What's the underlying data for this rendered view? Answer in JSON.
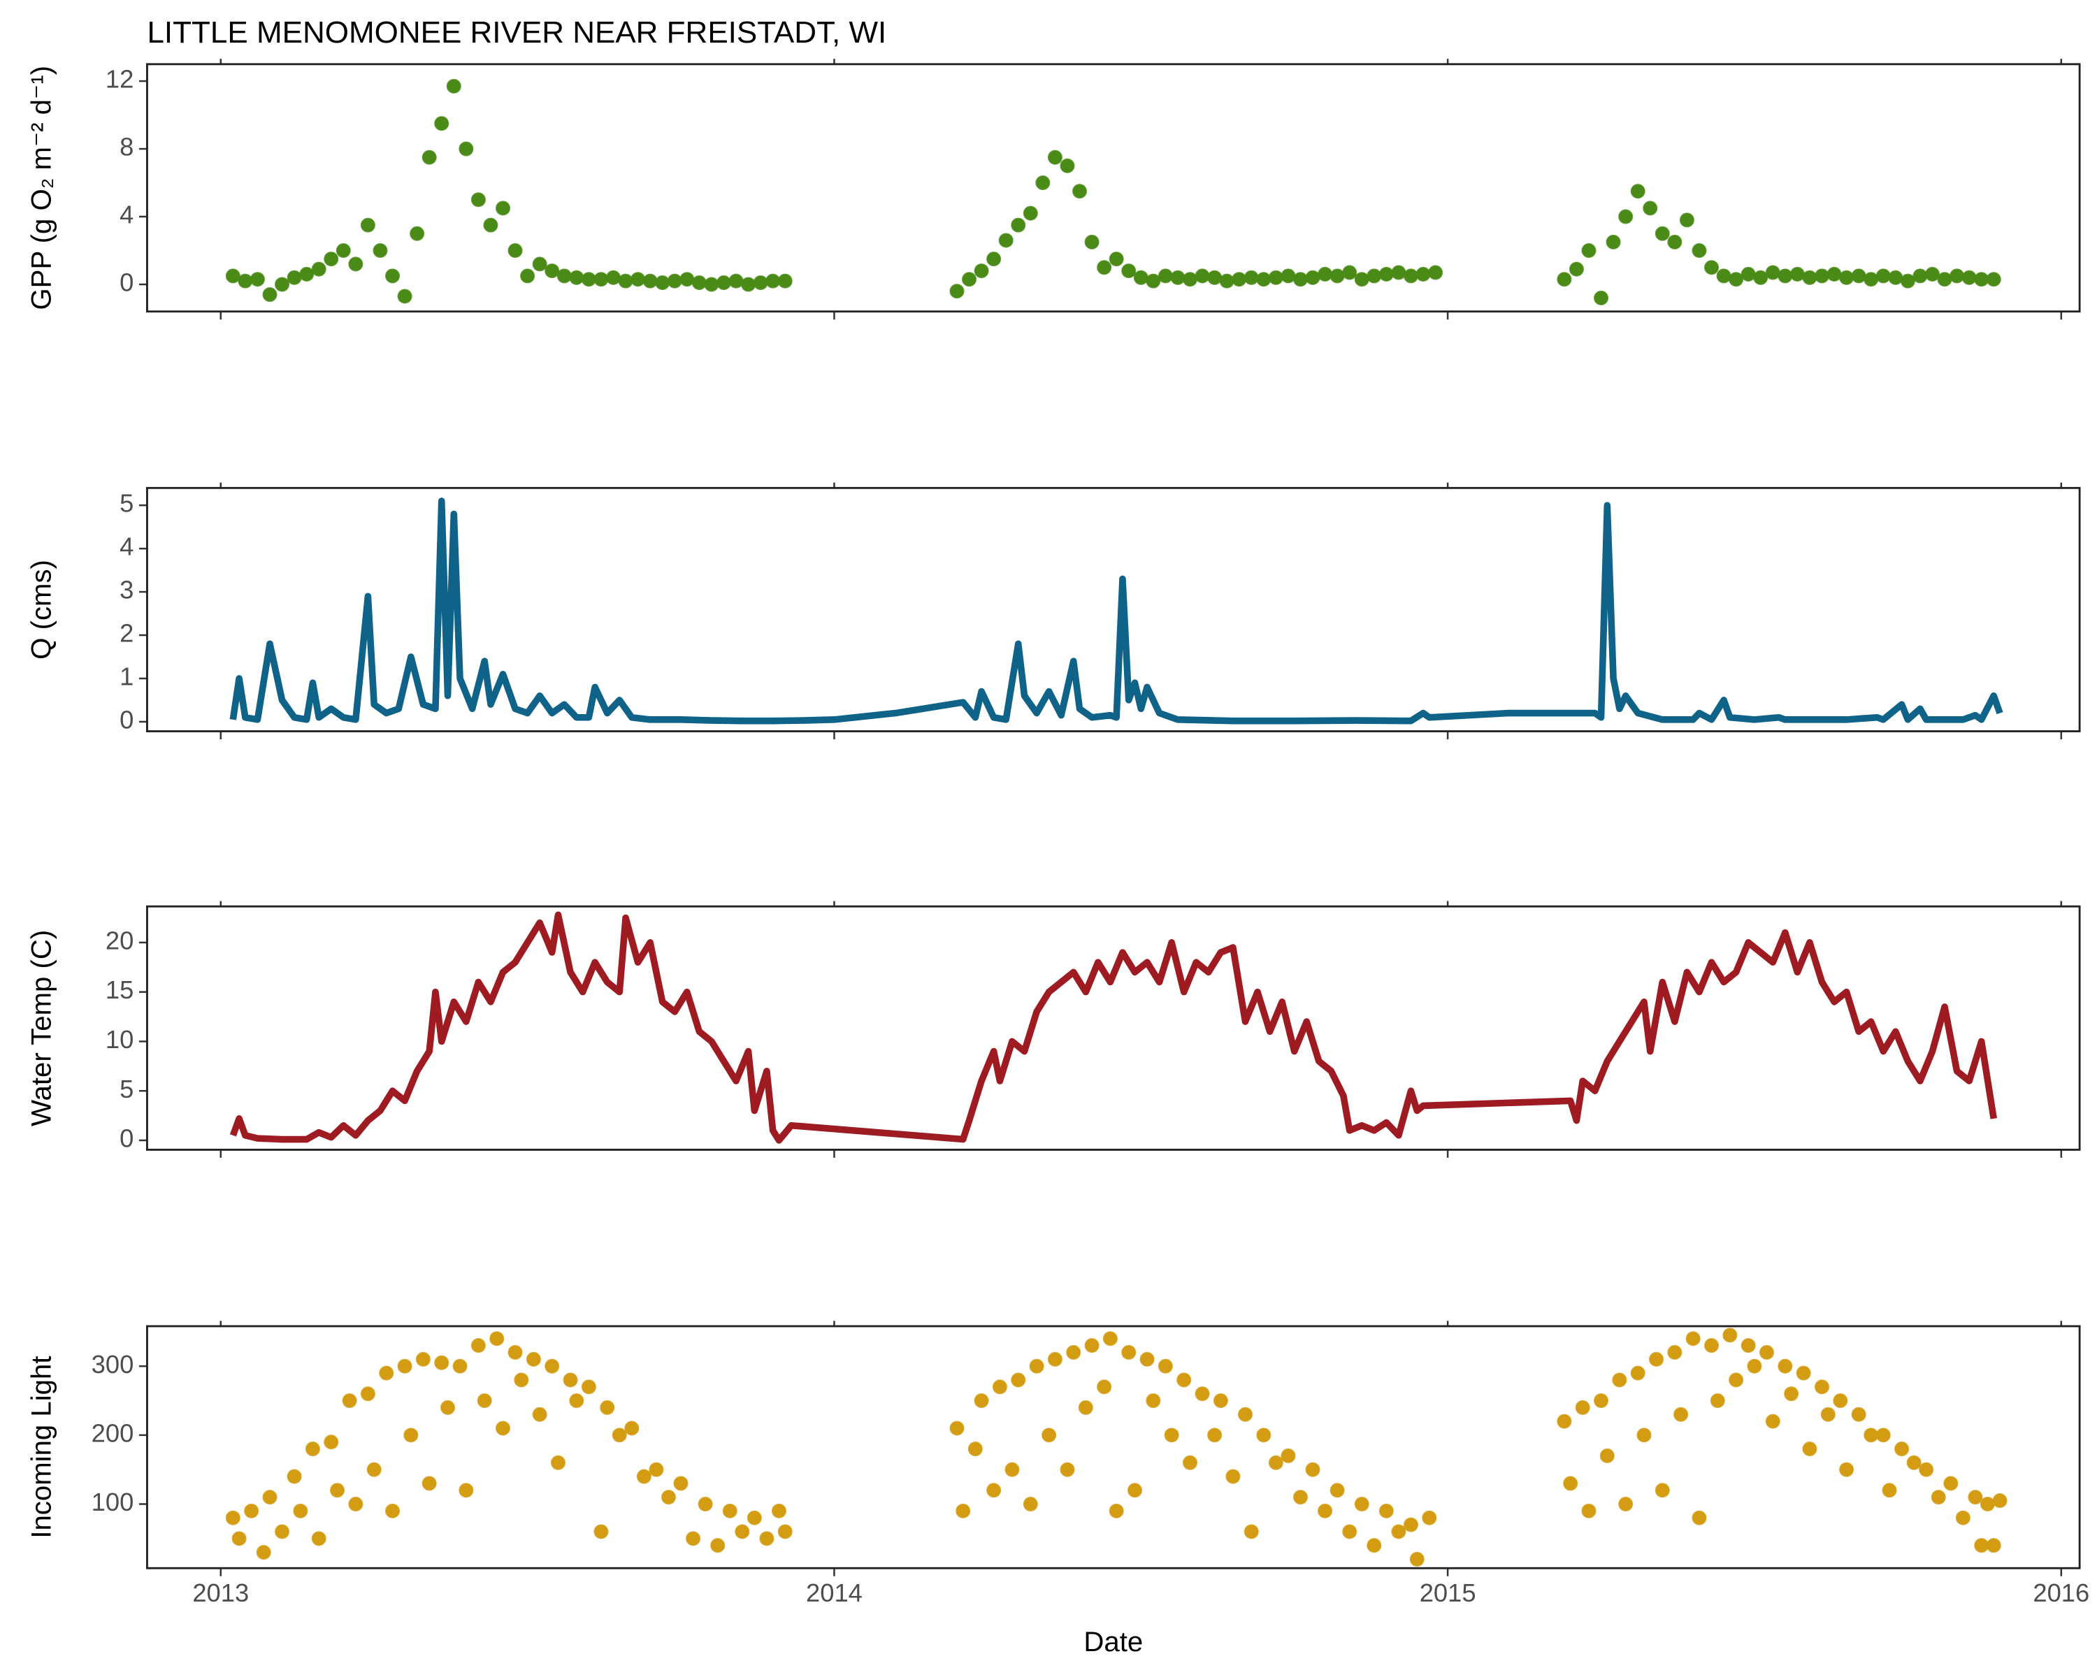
{
  "chart_data": [
    {
      "type": "scatter",
      "title": "LITTLE MENOMONEE RIVER NEAR FREISTADT, WI",
      "ylabel": "GPP (g  O₂ m⁻² d⁻¹)",
      "color": "#4a8a17",
      "x": [
        2013.02,
        2013.04,
        2013.06,
        2013.08,
        2013.1,
        2013.12,
        2013.14,
        2013.16,
        2013.18,
        2013.2,
        2013.22,
        2013.24,
        2013.26,
        2013.28,
        2013.3,
        2013.32,
        2013.34,
        2013.36,
        2013.38,
        2013.4,
        2013.42,
        2013.44,
        2013.46,
        2013.48,
        2013.5,
        2013.52,
        2013.54,
        2013.56,
        2013.58,
        2013.6,
        2013.62,
        2013.64,
        2013.66,
        2013.68,
        2013.7,
        2013.72,
        2013.74,
        2013.76,
        2013.78,
        2013.8,
        2013.82,
        2013.84,
        2013.86,
        2013.88,
        2013.9,
        2013.92,
        2014.2,
        2014.22,
        2014.24,
        2014.26,
        2014.28,
        2014.3,
        2014.32,
        2014.34,
        2014.36,
        2014.38,
        2014.4,
        2014.42,
        2014.44,
        2014.46,
        2014.48,
        2014.5,
        2014.52,
        2014.54,
        2014.56,
        2014.58,
        2014.6,
        2014.62,
        2014.64,
        2014.66,
        2014.68,
        2014.7,
        2014.72,
        2014.74,
        2014.76,
        2014.78,
        2014.8,
        2014.82,
        2014.84,
        2014.86,
        2014.88,
        2014.9,
        2014.92,
        2014.94,
        2014.96,
        2014.98,
        2015.19,
        2015.21,
        2015.23,
        2015.25,
        2015.27,
        2015.29,
        2015.31,
        2015.33,
        2015.35,
        2015.37,
        2015.39,
        2015.41,
        2015.43,
        2015.45,
        2015.47,
        2015.49,
        2015.51,
        2015.53,
        2015.55,
        2015.57,
        2015.59,
        2015.61,
        2015.63,
        2015.65,
        2015.67,
        2015.69,
        2015.71,
        2015.73,
        2015.75,
        2015.77,
        2015.79,
        2015.81,
        2015.83,
        2015.85,
        2015.87,
        2015.89
      ],
      "values": [
        0.5,
        0.2,
        0.3,
        -0.6,
        0,
        0.4,
        0.6,
        0.9,
        1.5,
        2,
        1.2,
        3.5,
        2,
        0.5,
        -0.7,
        3,
        7.5,
        9.5,
        11.7,
        8,
        5,
        3.5,
        4.5,
        2,
        0.5,
        1.2,
        0.8,
        0.5,
        0.4,
        0.3,
        0.3,
        0.4,
        0.2,
        0.3,
        0.2,
        0.1,
        0.2,
        0.3,
        0.1,
        0,
        0.1,
        0.2,
        0,
        0.1,
        0.2,
        0.2,
        -0.4,
        0.3,
        0.8,
        1.5,
        2.6,
        3.5,
        4.2,
        6,
        7.5,
        7,
        5.5,
        2.5,
        1,
        1.5,
        0.8,
        0.4,
        0.2,
        0.5,
        0.4,
        0.3,
        0.5,
        0.4,
        0.2,
        0.3,
        0.4,
        0.3,
        0.4,
        0.5,
        0.3,
        0.4,
        0.6,
        0.5,
        0.7,
        0.3,
        0.5,
        0.6,
        0.7,
        0.5,
        0.6,
        0.7,
        0.3,
        0.9,
        2,
        -0.8,
        2.5,
        4,
        5.5,
        4.5,
        3,
        2.5,
        3.8,
        2,
        1,
        0.5,
        0.3,
        0.6,
        0.4,
        0.7,
        0.5,
        0.6,
        0.4,
        0.5,
        0.6,
        0.4,
        0.5,
        0.3,
        0.5,
        0.4,
        0.2,
        0.5,
        0.6,
        0.3,
        0.5,
        0.4,
        0.3,
        0.3
      ],
      "xlim": [
        2012.88,
        2016.03
      ],
      "xticks": [
        2013,
        2014,
        2015,
        2016
      ],
      "ylim": [
        -1.6,
        13
      ],
      "yticks": [
        0,
        4,
        8,
        12
      ]
    },
    {
      "type": "line",
      "ylabel": "Q (cms)",
      "color": "#0f6389",
      "x": [
        2013.02,
        2013.03,
        2013.04,
        2013.06,
        2013.08,
        2013.1,
        2013.12,
        2013.14,
        2013.15,
        2013.16,
        2013.18,
        2013.2,
        2013.22,
        2013.24,
        2013.25,
        2013.27,
        2013.29,
        2013.31,
        2013.33,
        2013.35,
        2013.36,
        2013.37,
        2013.38,
        2013.39,
        2013.41,
        2013.43,
        2013.44,
        2013.46,
        2013.48,
        2013.5,
        2013.52,
        2013.54,
        2013.56,
        2013.58,
        2013.6,
        2013.61,
        2013.63,
        2013.65,
        2013.67,
        2013.7,
        2013.75,
        2013.8,
        2013.85,
        2013.9,
        2013.95,
        2014,
        2014.1,
        2014.21,
        2014.23,
        2014.24,
        2014.26,
        2014.28,
        2014.3,
        2014.31,
        2014.33,
        2014.35,
        2014.37,
        2014.39,
        2014.4,
        2014.42,
        2014.45,
        2014.46,
        2014.47,
        2014.48,
        2014.49,
        2014.5,
        2014.51,
        2014.53,
        2014.56,
        2014.65,
        2014.75,
        2014.85,
        2014.94,
        2014.96,
        2014.97,
        2015.1,
        2015.24,
        2015.25,
        2015.26,
        2015.27,
        2015.28,
        2015.29,
        2015.31,
        2015.35,
        2015.4,
        2015.41,
        2015.43,
        2015.45,
        2015.46,
        2015.5,
        2015.54,
        2015.55,
        2015.65,
        2015.7,
        2015.71,
        2015.74,
        2015.75,
        2015.77,
        2015.78,
        2015.84,
        2015.86,
        2015.87,
        2015.89,
        2015.9
      ],
      "values": [
        0.05,
        1,
        0.1,
        0.05,
        1.8,
        0.5,
        0.1,
        0.05,
        0.9,
        0.1,
        0.3,
        0.1,
        0.05,
        2.9,
        0.4,
        0.2,
        0.3,
        1.5,
        0.4,
        0.3,
        5.1,
        0.6,
        4.8,
        1,
        0.3,
        1.4,
        0.4,
        1.1,
        0.3,
        0.2,
        0.6,
        0.2,
        0.4,
        0.1,
        0.1,
        0.8,
        0.2,
        0.5,
        0.1,
        0.05,
        0.05,
        0.03,
        0.02,
        0.02,
        0.03,
        0.05,
        0.2,
        0.45,
        0.1,
        0.7,
        0.1,
        0.05,
        1.8,
        0.6,
        0.2,
        0.7,
        0.15,
        1.4,
        0.3,
        0.1,
        0.15,
        0.1,
        3.3,
        0.5,
        0.9,
        0.3,
        0.8,
        0.2,
        0.05,
        0.02,
        0.02,
        0.03,
        0.02,
        0.2,
        0.1,
        0.2,
        0.2,
        0.1,
        5,
        1,
        0.3,
        0.6,
        0.2,
        0.05,
        0.05,
        0.2,
        0.05,
        0.5,
        0.1,
        0.05,
        0.1,
        0.05,
        0.05,
        0.1,
        0.05,
        0.4,
        0.05,
        0.3,
        0.05,
        0.05,
        0.15,
        0.05,
        0.6,
        0.2
      ],
      "xlim": [
        2012.88,
        2016.03
      ],
      "xticks": [
        2013,
        2014,
        2015,
        2016
      ],
      "ylim": [
        -0.22,
        5.4
      ],
      "yticks": [
        0,
        1,
        2,
        3,
        4,
        5
      ]
    },
    {
      "type": "line",
      "ylabel": "Water Temp (C)",
      "color": "#9e1b22",
      "x": [
        2013.02,
        2013.03,
        2013.04,
        2013.06,
        2013.1,
        2013.14,
        2013.16,
        2013.18,
        2013.2,
        2013.22,
        2013.24,
        2013.26,
        2013.28,
        2013.3,
        2013.32,
        2013.34,
        2013.35,
        2013.36,
        2013.38,
        2013.4,
        2013.42,
        2013.44,
        2013.46,
        2013.48,
        2013.5,
        2013.52,
        2013.54,
        2013.55,
        2013.57,
        2013.59,
        2013.61,
        2013.63,
        2013.65,
        2013.66,
        2013.68,
        2013.7,
        2013.72,
        2013.74,
        2013.76,
        2013.78,
        2013.8,
        2013.82,
        2013.84,
        2013.86,
        2013.87,
        2013.89,
        2013.9,
        2013.91,
        2013.93,
        2014.21,
        2014.22,
        2014.24,
        2014.26,
        2014.27,
        2014.29,
        2014.31,
        2014.33,
        2014.35,
        2014.37,
        2014.39,
        2014.41,
        2014.43,
        2014.45,
        2014.47,
        2014.49,
        2014.51,
        2014.53,
        2014.55,
        2014.57,
        2014.59,
        2014.61,
        2014.63,
        2014.65,
        2014.67,
        2014.69,
        2014.71,
        2014.73,
        2014.75,
        2014.77,
        2014.79,
        2014.81,
        2014.83,
        2014.84,
        2014.86,
        2014.88,
        2014.9,
        2014.92,
        2014.94,
        2014.95,
        2014.96,
        2015.2,
        2015.21,
        2015.22,
        2015.24,
        2015.26,
        2015.28,
        2015.3,
        2015.32,
        2015.33,
        2015.35,
        2015.37,
        2015.39,
        2015.41,
        2015.43,
        2015.45,
        2015.47,
        2015.49,
        2015.51,
        2015.53,
        2015.55,
        2015.57,
        2015.59,
        2015.61,
        2015.63,
        2015.65,
        2015.67,
        2015.69,
        2015.71,
        2015.73,
        2015.75,
        2015.77,
        2015.79,
        2015.81,
        2015.83,
        2015.85,
        2015.87,
        2015.89
      ],
      "values": [
        0.5,
        2.2,
        0.5,
        0.2,
        0.1,
        0.1,
        0.8,
        0.3,
        1.5,
        0.5,
        2,
        3,
        5,
        4,
        7,
        9,
        15,
        10,
        14,
        12,
        16,
        14,
        17,
        18,
        20,
        22,
        19,
        22.8,
        17,
        15,
        18,
        16,
        15,
        22.5,
        18,
        20,
        14,
        13,
        15,
        11,
        10,
        8,
        6,
        9,
        3,
        7,
        1,
        0,
        1.5,
        0.1,
        2,
        6,
        9,
        6,
        10,
        9,
        13,
        15,
        16,
        17,
        15,
        18,
        16,
        19,
        17,
        18,
        16,
        20,
        15,
        18,
        17,
        19,
        19.5,
        12,
        15,
        11,
        14,
        9,
        12,
        8,
        7,
        4.5,
        1,
        1.5,
        1,
        1.8,
        0.5,
        5,
        3,
        3.5,
        4,
        2,
        6,
        5,
        8,
        10,
        12,
        14,
        9,
        16,
        12,
        17,
        15,
        18,
        16,
        17,
        20,
        19,
        18,
        21,
        17,
        20,
        16,
        14,
        15,
        11,
        12,
        9,
        11,
        8,
        6,
        9,
        13.5,
        7,
        6,
        10,
        2.2
      ],
      "xlim": [
        2012.88,
        2016.03
      ],
      "xticks": [
        2013,
        2014,
        2015,
        2016
      ],
      "ylim": [
        -0.95,
        23.65
      ],
      "yticks": [
        0,
        5,
        10,
        15,
        20
      ]
    },
    {
      "type": "scatter",
      "ylabel": "Incoming Light",
      "xlabel": "Date",
      "color": "#d39c12",
      "x": [
        2013.02,
        2013.03,
        2013.05,
        2013.07,
        2013.08,
        2013.1,
        2013.12,
        2013.13,
        2013.15,
        2013.16,
        2013.18,
        2013.19,
        2013.21,
        2013.22,
        2013.24,
        2013.25,
        2013.27,
        2013.28,
        2013.3,
        2013.31,
        2013.33,
        2013.34,
        2013.36,
        2013.37,
        2013.39,
        2013.4,
        2013.42,
        2013.43,
        2013.45,
        2013.46,
        2013.48,
        2013.49,
        2013.51,
        2013.52,
        2013.54,
        2013.55,
        2013.57,
        2013.58,
        2013.6,
        2013.62,
        2013.63,
        2013.65,
        2013.67,
        2013.69,
        2013.71,
        2013.73,
        2013.75,
        2013.77,
        2013.79,
        2013.81,
        2013.83,
        2013.85,
        2013.87,
        2013.89,
        2013.91,
        2013.92,
        2014.2,
        2014.21,
        2014.23,
        2014.24,
        2014.26,
        2014.27,
        2014.29,
        2014.3,
        2014.32,
        2014.33,
        2014.35,
        2014.36,
        2014.38,
        2014.39,
        2014.41,
        2014.42,
        2014.44,
        2014.45,
        2014.46,
        2014.48,
        2014.49,
        2014.51,
        2014.52,
        2014.54,
        2014.55,
        2014.57,
        2014.58,
        2014.6,
        2014.62,
        2014.63,
        2014.65,
        2014.67,
        2014.68,
        2014.7,
        2014.72,
        2014.74,
        2014.76,
        2014.78,
        2014.8,
        2014.82,
        2014.84,
        2014.86,
        2014.88,
        2014.9,
        2014.92,
        2014.94,
        2014.95,
        2014.97,
        2015.19,
        2015.2,
        2015.22,
        2015.23,
        2015.25,
        2015.26,
        2015.28,
        2015.29,
        2015.31,
        2015.32,
        2015.34,
        2015.35,
        2015.37,
        2015.38,
        2015.4,
        2015.41,
        2015.43,
        2015.44,
        2015.46,
        2015.47,
        2015.49,
        2015.5,
        2015.52,
        2015.53,
        2015.55,
        2015.56,
        2015.58,
        2015.59,
        2015.61,
        2015.62,
        2015.64,
        2015.65,
        2015.67,
        2015.69,
        2015.71,
        2015.72,
        2015.74,
        2015.76,
        2015.78,
        2015.8,
        2015.82,
        2015.84,
        2015.86,
        2015.87,
        2015.88,
        2015.89,
        2015.9
      ],
      "values": [
        80,
        50,
        90,
        30,
        110,
        60,
        140,
        90,
        180,
        50,
        190,
        120,
        250,
        100,
        260,
        150,
        290,
        90,
        300,
        200,
        310,
        130,
        305,
        240,
        300,
        120,
        330,
        250,
        340,
        210,
        320,
        280,
        310,
        230,
        300,
        160,
        280,
        250,
        270,
        60,
        240,
        200,
        210,
        140,
        150,
        110,
        130,
        50,
        100,
        40,
        90,
        60,
        80,
        50,
        90,
        60,
        210,
        90,
        180,
        250,
        120,
        270,
        150,
        280,
        100,
        300,
        200,
        310,
        150,
        320,
        240,
        330,
        270,
        340,
        90,
        320,
        120,
        310,
        250,
        300,
        200,
        280,
        160,
        260,
        200,
        250,
        140,
        230,
        60,
        200,
        160,
        170,
        110,
        150,
        90,
        120,
        60,
        100,
        40,
        90,
        60,
        70,
        20,
        80,
        220,
        130,
        240,
        90,
        250,
        170,
        280,
        100,
        290,
        200,
        310,
        120,
        320,
        230,
        340,
        80,
        330,
        250,
        345,
        280,
        330,
        300,
        320,
        220,
        300,
        260,
        290,
        180,
        270,
        230,
        250,
        150,
        230,
        200,
        200,
        120,
        180,
        160,
        150,
        110,
        130,
        80,
        110,
        40,
        100,
        40,
        105
      ],
      "xlim": [
        2012.88,
        2016.03
      ],
      "xticks": [
        2013,
        2014,
        2015,
        2016
      ],
      "ylim": [
        7,
        358
      ],
      "yticks": [
        100,
        200,
        300
      ]
    }
  ]
}
